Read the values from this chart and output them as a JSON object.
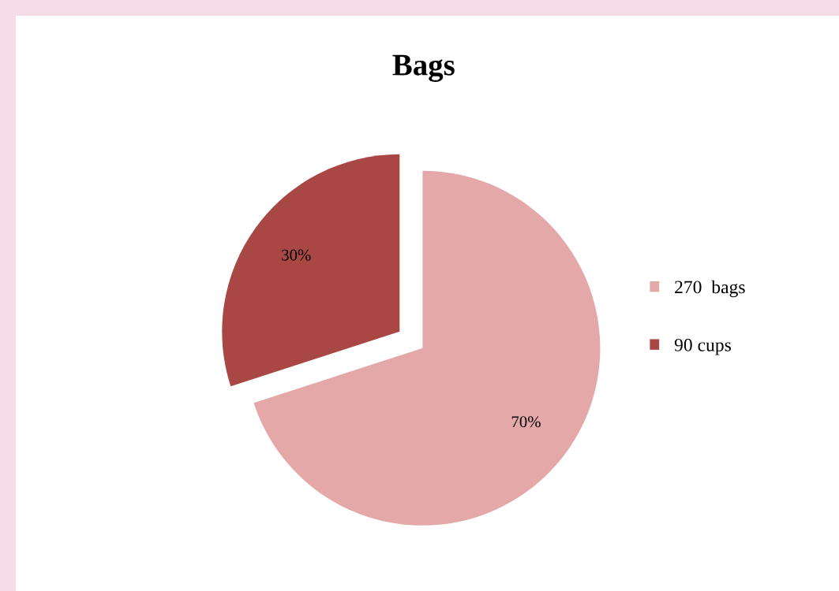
{
  "chart_data": {
    "type": "pie",
    "title": "Bags",
    "categories": [
      "270  bags",
      "90 cups"
    ],
    "values": [
      70,
      30
    ],
    "colors": [
      "#e3a8a7",
      "#a94745"
    ],
    "value_labels": [
      "70%",
      "30%"
    ],
    "legend": "right"
  }
}
